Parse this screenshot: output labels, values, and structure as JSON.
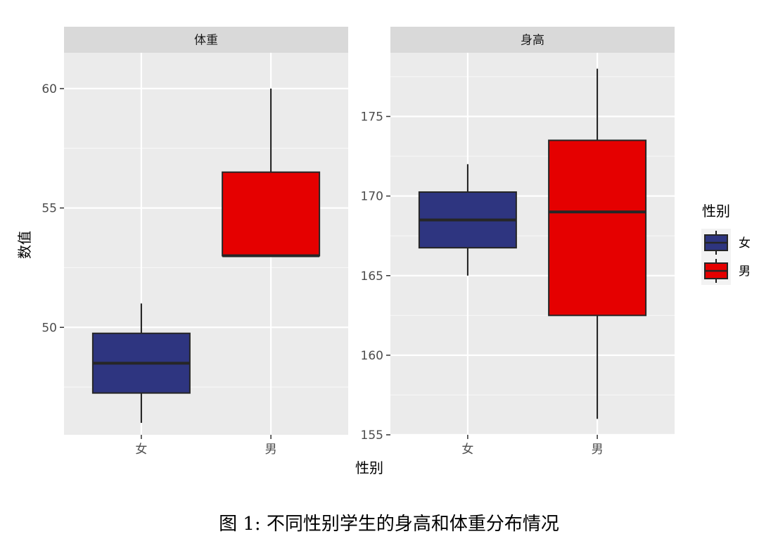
{
  "chart_data": {
    "type": "boxplot",
    "xlabel": "性别",
    "ylabel": "数值",
    "categories": [
      "女",
      "男"
    ],
    "colors": {
      "女": "#2e3580",
      "男": "#e50000"
    },
    "legend": {
      "title": "性别",
      "position": "right",
      "entries": [
        "女",
        "男"
      ]
    },
    "grid": true,
    "panels": [
      {
        "title": "体重",
        "ylim": [
          45.5,
          61.5
        ],
        "yticks": [
          50,
          55,
          60
        ],
        "yticklabels": [
          "50",
          "55",
          "60"
        ],
        "boxes": [
          {
            "category": "女",
            "min": 46,
            "q1": 47.25,
            "median": 48.5,
            "q3": 49.75,
            "max": 51
          },
          {
            "category": "男",
            "min": 53,
            "q1": 53,
            "median": 53,
            "q3": 56.5,
            "max": 60
          }
        ]
      },
      {
        "title": "身高",
        "ylim": [
          155,
          179
        ],
        "yticks": [
          155,
          160,
          165,
          170,
          175
        ],
        "yticklabels": [
          "155",
          "160",
          "165",
          "170",
          "175"
        ],
        "boxes": [
          {
            "category": "女",
            "min": 165,
            "q1": 166.75,
            "median": 168.5,
            "q3": 170.25,
            "max": 172
          },
          {
            "category": "男",
            "min": 156,
            "q1": 162.5,
            "median": 169,
            "q3": 173.5,
            "max": 178
          }
        ]
      }
    ]
  },
  "caption": "图 1: 不同性别学生的身高和体重分布情况"
}
